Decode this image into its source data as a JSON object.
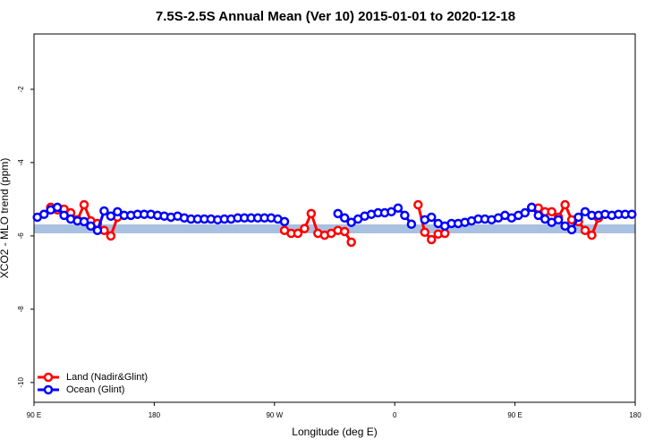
{
  "chart_data": {
    "type": "line",
    "title": "7.5S-2.5S Annual Mean (Ver 10)   2015-01-01 to 2020-12-18",
    "xlabel": "Longitude (deg E)",
    "ylabel": "XCO2 - MLO trend (ppm)",
    "xlim": [
      90,
      540
    ],
    "ylim": [
      -10.54,
      -0.49
    ],
    "xticks": [
      {
        "value": 90,
        "label": "90 E"
      },
      180,
      {
        "value": 270,
        "label": "90 W"
      },
      {
        "value": 360,
        "label": "0"
      },
      {
        "value": 450,
        "label": "90 E"
      },
      {
        "value": 540,
        "label": "180"
      }
    ],
    "yticks": [
      -10,
      -8,
      -6,
      -4,
      -2
    ],
    "legend": "lower left",
    "x": [
      92.5,
      97.5,
      102.5,
      107.5,
      112.5,
      117.5,
      122.5,
      127.5,
      132.5,
      137.5,
      142.5,
      147.5,
      152.5,
      157.5,
      162.5,
      167.5,
      172.5,
      177.5,
      182.5,
      187.5,
      192.5,
      197.5,
      202.5,
      207.5,
      212.5,
      217.5,
      222.5,
      227.5,
      232.5,
      237.5,
      242.5,
      247.5,
      252.5,
      257.5,
      262.5,
      267.5,
      272.5,
      277.5,
      282.5,
      287.5,
      292.5,
      297.5,
      302.5,
      307.5,
      312.5,
      317.5,
      322.5,
      327.5,
      332.5,
      337.5,
      342.5,
      347.5,
      352.5,
      357.5,
      362.5,
      367.5,
      372.5,
      377.5,
      382.5,
      387.5,
      392.5,
      397.5,
      402.5,
      407.5,
      412.5,
      417.5,
      422.5,
      427.5,
      432.5,
      437.5,
      442.5,
      447.5,
      452.5,
      457.5,
      462.5,
      467.5,
      472.5,
      477.5,
      482.5,
      487.5,
      492.5,
      497.5,
      502.5,
      507.5,
      512.5,
      517.5,
      522.5,
      527.5,
      532.5,
      537.5
    ],
    "series": [
      {
        "name": "Land (Nadir&Glint)",
        "color": "#ff0000",
        "values": [
          null,
          null,
          -5.22,
          -5.29,
          -5.27,
          -5.37,
          -5.56,
          -5.15,
          -5.59,
          -5.66,
          -5.85,
          -6.0,
          -5.49,
          null,
          null,
          null,
          null,
          null,
          null,
          null,
          null,
          null,
          null,
          null,
          null,
          null,
          null,
          null,
          null,
          null,
          null,
          null,
          null,
          null,
          null,
          null,
          null,
          -5.85,
          -5.93,
          -5.93,
          -5.8,
          -5.39,
          -5.93,
          -5.98,
          -5.93,
          -5.85,
          -5.88,
          -6.17,
          null,
          null,
          null,
          null,
          null,
          null,
          null,
          null,
          null,
          -5.15,
          -5.9,
          -6.1,
          -5.95,
          -5.93,
          null,
          null,
          null,
          null,
          null,
          null,
          null,
          null,
          null,
          null,
          null,
          null,
          -5.22,
          -5.24,
          -5.34,
          -5.34,
          -5.49,
          -5.15,
          -5.56,
          -5.61,
          -5.85,
          -5.98,
          -5.51,
          null,
          null,
          null,
          null,
          null
        ]
      },
      {
        "name": "Ocean (Glint)",
        "color": "#0000ff",
        "values": [
          -5.49,
          -5.41,
          -5.29,
          -5.22,
          -5.44,
          -5.54,
          -5.59,
          -5.61,
          -5.73,
          -5.85,
          -5.32,
          -5.46,
          -5.34,
          -5.44,
          -5.44,
          -5.41,
          -5.41,
          -5.41,
          -5.44,
          -5.46,
          -5.49,
          -5.46,
          -5.51,
          -5.54,
          -5.54,
          -5.54,
          -5.54,
          -5.56,
          -5.54,
          -5.54,
          -5.51,
          -5.51,
          -5.51,
          -5.51,
          -5.51,
          -5.51,
          -5.54,
          -5.61,
          null,
          null,
          null,
          null,
          null,
          null,
          null,
          -5.39,
          -5.51,
          -5.63,
          -5.54,
          -5.46,
          -5.41,
          -5.37,
          -5.37,
          -5.34,
          -5.24,
          -5.44,
          -5.68,
          null,
          -5.56,
          -5.49,
          -5.66,
          -5.73,
          -5.66,
          -5.66,
          -5.63,
          -5.59,
          -5.54,
          -5.54,
          -5.56,
          -5.51,
          -5.44,
          -5.51,
          -5.44,
          -5.37,
          -5.22,
          -5.44,
          -5.54,
          -5.63,
          -5.56,
          -5.73,
          -5.83,
          -5.49,
          -5.34,
          -5.44,
          -5.44,
          -5.41,
          -5.44,
          -5.41,
          -5.41,
          -5.41
        ]
      }
    ]
  }
}
